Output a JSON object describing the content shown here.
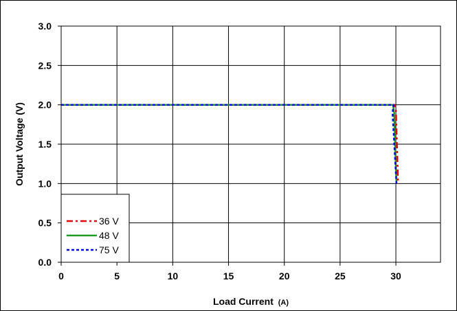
{
  "chart_data": {
    "type": "line",
    "xlabel": "Load Current",
    "xlabel_unit": "(A)",
    "ylabel": "Output Voltage (V)",
    "xlim": [
      0,
      34
    ],
    "ylim": [
      0,
      3.0
    ],
    "x_ticks": [
      0,
      5,
      10,
      15,
      20,
      25,
      30
    ],
    "x_tick_labels": [
      "0",
      "5",
      "10",
      "15",
      "20",
      "25",
      "30"
    ],
    "y_ticks": [
      0,
      0.5,
      1.0,
      1.5,
      2.0,
      2.5,
      3.0
    ],
    "y_tick_labels": [
      "0.0",
      "0.5",
      "1.0",
      "1.5",
      "2.0",
      "2.5",
      "3.0"
    ],
    "x_gridlines": [
      0,
      5,
      10,
      15,
      20,
      25,
      30
    ],
    "y_gridlines": [
      0,
      0.5,
      1.0,
      1.5,
      2.0,
      2.5,
      3.0
    ],
    "grid": true,
    "legend_position": "bottom-left",
    "series": [
      {
        "name": "36 V",
        "color": "#e8000b",
        "dash": "dash-dot",
        "x": [
          0,
          29.9,
          30.0,
          30.2
        ],
        "y": [
          2.0,
          2.0,
          1.95,
          1.0
        ]
      },
      {
        "name": "48 V",
        "color": "#1a9c20",
        "dash": "solid",
        "x": [
          0,
          29.75,
          29.85,
          30.05
        ],
        "y": [
          2.0,
          2.0,
          1.9,
          1.0
        ]
      },
      {
        "name": "75 V",
        "color": "#0000e0",
        "dash": "dot",
        "x": [
          0,
          29.8,
          29.7,
          30.05
        ],
        "y": [
          2.0,
          2.0,
          1.9,
          1.0
        ]
      }
    ]
  }
}
